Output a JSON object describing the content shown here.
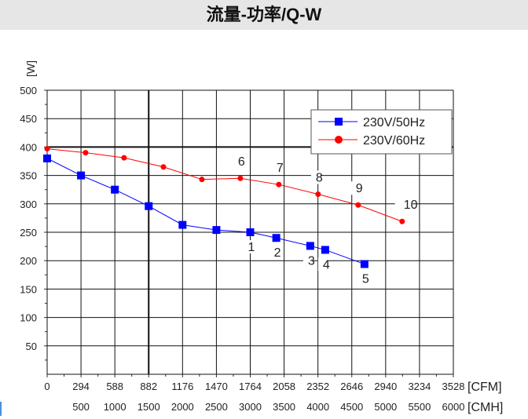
{
  "title": "流量-功率/Q-W",
  "chart_data": {
    "type": "line",
    "title": "流量-功率/Q-W",
    "ylabel": "[W]",
    "xlabel": "[CFM]",
    "xlabel2": "[CMH]",
    "xlim": [
      0,
      3528
    ],
    "ylim": [
      0,
      500
    ],
    "xticks": [
      0,
      294,
      588,
      882,
      1176,
      1470,
      1764,
      2058,
      2352,
      2646,
      2940,
      3234,
      3528
    ],
    "xticks2": [
      500,
      1000,
      1500,
      2000,
      2500,
      3000,
      3500,
      4000,
      4500,
      5000,
      5500,
      6000
    ],
    "yticks": [
      50,
      100,
      150,
      200,
      250,
      300,
      350,
      400,
      450,
      500
    ],
    "grid": true,
    "legend": "top-right",
    "series": [
      {
        "name": "230V/50Hz",
        "color": "#0000ff",
        "marker": "square",
        "x": [
          0,
          294,
          588,
          882,
          1176,
          1470,
          1764,
          1990,
          2285,
          2415,
          2756
        ],
        "y": [
          380,
          350,
          325,
          296,
          263,
          254,
          250,
          240,
          226,
          219,
          194
        ],
        "point_labels": [
          null,
          null,
          null,
          null,
          null,
          null,
          "1",
          "2",
          "3",
          "4",
          "5"
        ]
      },
      {
        "name": "230V/60Hz",
        "color": "#ff0000",
        "marker": "circle",
        "x": [
          0,
          334,
          668,
          1010,
          1344,
          1678,
          2012,
          2353,
          2701,
          3083
        ],
        "y": [
          397,
          390,
          381,
          365,
          343,
          345,
          334,
          317,
          298,
          269
        ],
        "point_labels": [
          null,
          null,
          null,
          null,
          null,
          "6",
          "7",
          "8",
          "9",
          "10"
        ]
      }
    ]
  }
}
